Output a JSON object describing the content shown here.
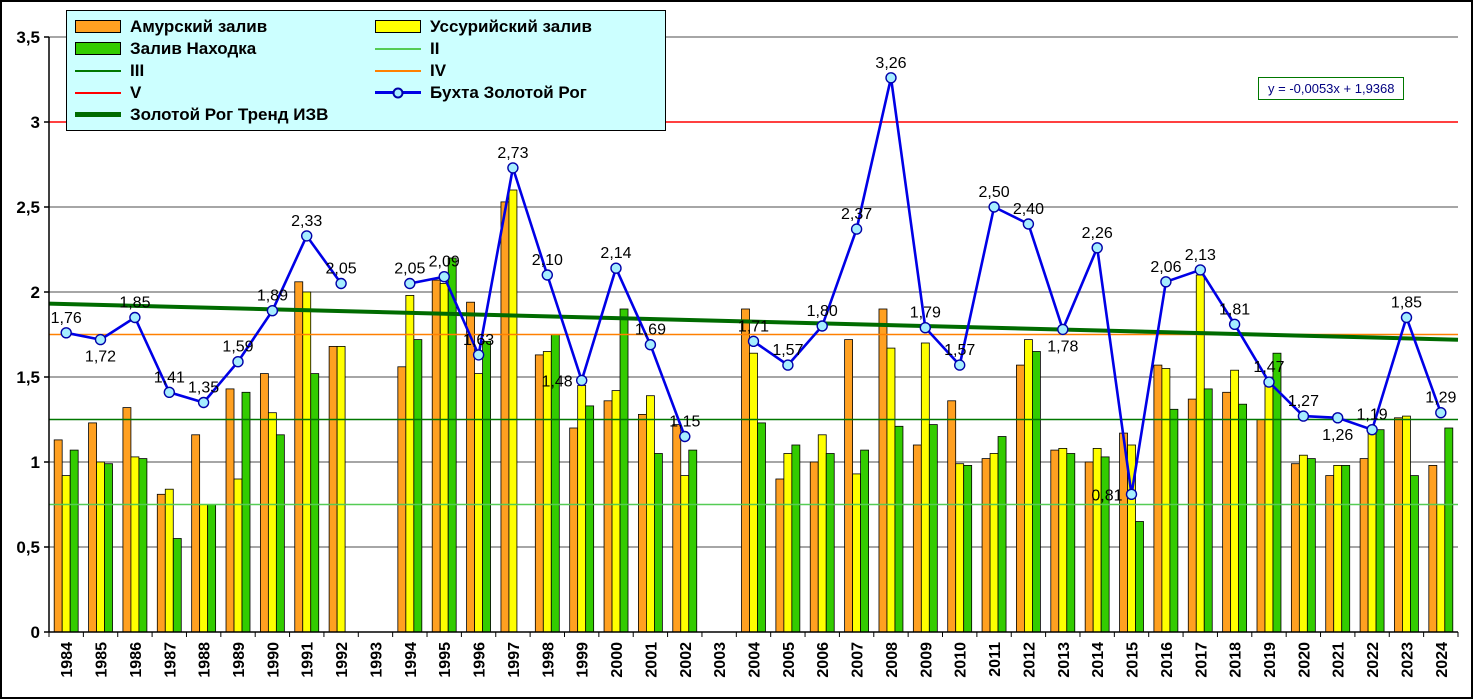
{
  "chart_data": {
    "type": "bar+line",
    "title": "",
    "x": [
      "1984",
      "1985",
      "1986",
      "1987",
      "1988",
      "1989",
      "1990",
      "1991",
      "1992",
      "1993",
      "1994",
      "1995",
      "1996",
      "1997",
      "1998",
      "1999",
      "2000",
      "2001",
      "2002",
      "2003",
      "2004",
      "2005",
      "2006",
      "2007",
      "2008",
      "2009",
      "2010",
      "2011",
      "2012",
      "2013",
      "2014",
      "2015",
      "2016",
      "2017",
      "2018",
      "2019",
      "2020",
      "2021",
      "2022",
      "2023",
      "2024"
    ],
    "ylim": [
      0,
      3.5
    ],
    "ytick_labels": [
      "0",
      "0,5",
      "1",
      "1,5",
      "2",
      "2,5",
      "3",
      "3,5"
    ],
    "grid": true,
    "legend_position": "top-left",
    "bar_series": [
      {
        "name": "Амурский  залив",
        "color": "#FFA021",
        "values": [
          1.13,
          1.23,
          1.32,
          0.81,
          1.16,
          1.43,
          1.52,
          2.06,
          1.68,
          null,
          1.56,
          2.07,
          1.94,
          2.53,
          1.63,
          1.2,
          1.36,
          1.28,
          1.22,
          null,
          1.9,
          0.9,
          1.0,
          1.72,
          1.9,
          1.1,
          1.36,
          1.02,
          1.57,
          1.07,
          1.0,
          1.17,
          1.57,
          1.37,
          1.41,
          1.25,
          0.99,
          0.92,
          1.02,
          1.26,
          0.98
        ]
      },
      {
        "name": "Уссурийский залив",
        "color": "#FFFF00",
        "values": [
          0.92,
          1.0,
          1.03,
          0.84,
          0.75,
          0.9,
          1.29,
          2.0,
          1.68,
          null,
          1.98,
          2.05,
          1.52,
          2.6,
          1.65,
          1.45,
          1.42,
          1.39,
          0.92,
          null,
          1.64,
          1.05,
          1.16,
          0.93,
          1.67,
          1.7,
          0.99,
          1.05,
          1.72,
          1.08,
          1.08,
          1.1,
          1.55,
          2.1,
          1.54,
          1.47,
          1.04,
          0.98,
          1.17,
          1.27,
          0.75
        ]
      },
      {
        "name": "Залив Находка",
        "color": "#33CC00",
        "values": [
          1.07,
          0.99,
          1.02,
          0.55,
          0.75,
          1.41,
          1.16,
          1.52,
          null,
          null,
          1.72,
          2.2,
          1.71,
          null,
          1.75,
          1.33,
          1.9,
          1.05,
          1.07,
          null,
          1.23,
          1.1,
          1.05,
          1.07,
          1.21,
          1.22,
          0.98,
          1.15,
          1.65,
          1.05,
          1.03,
          0.65,
          1.31,
          1.43,
          1.34,
          1.64,
          1.02,
          0.98,
          1.19,
          0.92,
          1.2
        ]
      }
    ],
    "line_series": {
      "name": "Бухта Золотой Рог",
      "color": "#0000E6",
      "marker_fill": "#A6EEFF",
      "marker_stroke": "#0000A8",
      "values": [
        1.76,
        1.72,
        1.85,
        1.41,
        1.35,
        1.59,
        1.89,
        2.33,
        2.05,
        null,
        2.05,
        2.09,
        1.63,
        2.73,
        2.1,
        1.48,
        2.14,
        1.69,
        1.15,
        null,
        1.71,
        1.57,
        1.8,
        2.37,
        3.26,
        1.79,
        1.57,
        2.5,
        2.4,
        1.78,
        2.26,
        0.81,
        2.06,
        2.13,
        1.81,
        1.47,
        1.27,
        1.26,
        1.19,
        1.85,
        1.29
      ]
    },
    "reference_lines": [
      {
        "name": "II",
        "value": 0.75,
        "color": "#55CC55"
      },
      {
        "name": "III",
        "value": 1.25,
        "color": "#007700"
      },
      {
        "name": "IV",
        "value": 1.75,
        "color": "#FF8000"
      },
      {
        "name": "V",
        "value": 3.0,
        "color": "#FF0000"
      }
    ],
    "trend_line": {
      "name": "Золотой Рог Тренд ИЗВ",
      "color": "#006B00",
      "slope": -0.0053,
      "intercept": 1.9368,
      "equation_label": "y = -0,0053x + 1,9368"
    }
  },
  "legend": {
    "items": [
      {
        "label": "Амурский  залив",
        "swatch": "rect",
        "color": "#FFA021"
      },
      {
        "label": "Уссурийский залив",
        "swatch": "rect",
        "color": "#FFFF00"
      },
      {
        "label": "Залив Находка",
        "swatch": "rect",
        "color": "#33CC00"
      },
      {
        "label": "II",
        "swatch": "line",
        "color": "#55CC55"
      },
      {
        "label": "III",
        "swatch": "line",
        "color": "#007700"
      },
      {
        "label": "IV",
        "swatch": "line",
        "color": "#FF8000"
      },
      {
        "label": "V",
        "swatch": "line",
        "color": "#FF0000"
      },
      {
        "label": "Бухта Золотой Рог",
        "swatch": "line-marker",
        "color": "#0000E6"
      },
      {
        "label": "Золотой Рог Тренд ИЗВ",
        "swatch": "thick-line",
        "color": "#006B00"
      }
    ]
  },
  "annotation": {
    "equation_label": "y = -0,0053x + 1,9368"
  }
}
